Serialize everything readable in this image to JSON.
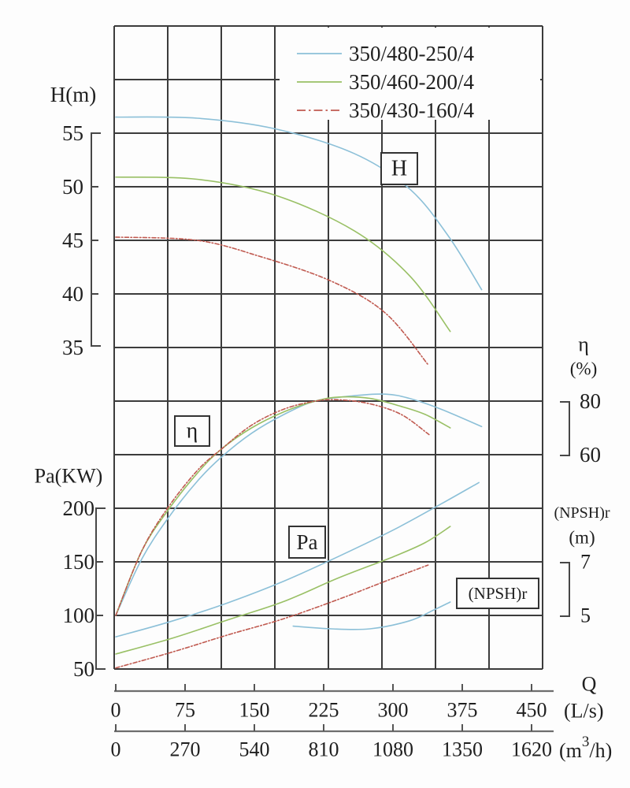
{
  "chart_data": {
    "type": "line",
    "title": "",
    "grid": true,
    "legend_position": "top-right-inside",
    "legend": [
      {
        "label": "350/480-250/4",
        "color": "#8cc0d8",
        "style": "solid"
      },
      {
        "label": "350/460-200/4",
        "color": "#99c065",
        "style": "solid"
      },
      {
        "label": "350/430-160/4",
        "color": "#c05a50",
        "style": "dashdot"
      }
    ],
    "axes": {
      "x_primary": {
        "name": "Q",
        "unit": "(L/s)",
        "ticks": [
          0,
          75,
          150,
          225,
          300,
          375,
          450
        ]
      },
      "x_secondary": {
        "unit_parts": {
          "pre": "(m",
          "sup": "3",
          "post": "/h)"
        },
        "ticks": [
          0,
          270,
          540,
          810,
          1080,
          1350,
          1620
        ]
      },
      "y_H": {
        "title": "H(m)",
        "ticks": [
          55,
          50,
          45,
          40,
          35
        ],
        "side": "left"
      },
      "y_Pa": {
        "title": "Pa(KW)",
        "ticks": [
          200,
          150,
          100,
          50
        ],
        "side": "left"
      },
      "y_eta": {
        "title": "η",
        "unit": "(%)",
        "ticks": [
          80,
          60
        ],
        "side": "right"
      },
      "y_npsh": {
        "title": "(NPSH)r",
        "unit": "(m)",
        "ticks": [
          7,
          5
        ],
        "side": "right"
      }
    },
    "curve_labels": {
      "H": "H",
      "eta": "η",
      "Pa": "Pa",
      "npsh": "(NPSH)r"
    },
    "series": {
      "H": [
        {
          "model": "350/480-250/4",
          "points": [
            [
              0,
              56.5
            ],
            [
              88,
              56.4
            ],
            [
              173,
              55.4
            ],
            [
              258,
              53.1
            ],
            [
              318,
              49.8
            ],
            [
              360,
              45.4
            ],
            [
              396,
              40.4
            ]
          ]
        },
        {
          "model": "350/460-200/4",
          "points": [
            [
              0,
              50.9
            ],
            [
              88,
              50.7
            ],
            [
              173,
              49.2
            ],
            [
              258,
              45.9
            ],
            [
              318,
              41.7
            ],
            [
              362,
              36.5
            ]
          ]
        },
        {
          "model": "350/430-160/4",
          "points": [
            [
              0,
              45.3
            ],
            [
              88,
              45.0
            ],
            [
              156,
              43.5
            ],
            [
              233,
              41.2
            ],
            [
              292,
              38.2
            ],
            [
              338,
              33.4
            ]
          ]
        }
      ],
      "eta": [
        {
          "model": "350/480-250/4",
          "points": [
            [
              0,
              0
            ],
            [
              28,
              21
            ],
            [
              56,
              36
            ],
            [
              88,
              50
            ],
            [
              114,
              59
            ],
            [
              147,
              68
            ],
            [
              182,
              75
            ],
            [
              216,
              80
            ],
            [
              258,
              82
            ],
            [
              292,
              82.6
            ],
            [
              318,
              81
            ],
            [
              352,
              77
            ],
            [
              396,
              70.5
            ]
          ]
        },
        {
          "model": "350/460-200/4",
          "points": [
            [
              0,
              0
            ],
            [
              28,
              24
            ],
            [
              56,
              39
            ],
            [
              88,
              53
            ],
            [
              114,
              62
            ],
            [
              147,
              70
            ],
            [
              182,
              76
            ],
            [
              216,
              80
            ],
            [
              241,
              81.5
            ],
            [
              275,
              81
            ],
            [
              309,
              78
            ],
            [
              335,
              75
            ],
            [
              362,
              70
            ]
          ]
        },
        {
          "model": "350/430-160/4",
          "points": [
            [
              0,
              0
            ],
            [
              28,
              24
            ],
            [
              56,
              40
            ],
            [
              88,
              54
            ],
            [
              114,
              62
            ],
            [
              147,
              71
            ],
            [
              182,
              77
            ],
            [
              216,
              80
            ],
            [
              241,
              80.5
            ],
            [
              275,
              79
            ],
            [
              309,
              75
            ],
            [
              339,
              67.5
            ]
          ]
        }
      ],
      "Pa": [
        {
          "model": "350/480-250/4",
          "points": [
            [
              0,
              80
            ],
            [
              62,
              95
            ],
            [
              122,
              112
            ],
            [
              182,
              132
            ],
            [
              241,
              155
            ],
            [
              301,
              180
            ],
            [
              352,
              204
            ],
            [
              393,
              224
            ]
          ]
        },
        {
          "model": "350/460-200/4",
          "points": [
            [
              0,
              64
            ],
            [
              62,
              79
            ],
            [
              122,
              96
            ],
            [
              182,
              113
            ],
            [
              241,
              135
            ],
            [
              301,
              155
            ],
            [
              335,
              168
            ],
            [
              362,
              183
            ]
          ]
        },
        {
          "model": "350/430-160/4",
          "points": [
            [
              0,
              51
            ],
            [
              62,
              66
            ],
            [
              122,
              82
            ],
            [
              182,
              97
            ],
            [
              241,
              115
            ],
            [
              292,
              132
            ],
            [
              338,
              147
            ]
          ]
        }
      ],
      "npsh": [
        {
          "model": "350/480-250/4",
          "points": [
            [
              192,
              4.6
            ],
            [
              233,
              4.5
            ],
            [
              275,
              4.5
            ],
            [
              318,
              4.8
            ],
            [
              344,
              5.2
            ],
            [
              362,
              5.5
            ]
          ]
        }
      ]
    },
    "style": {
      "grid_color": "#3c3c3c",
      "axis_color": "#6e6e6e",
      "bracket_color": "#474747",
      "text_color": "#1f1f1f"
    }
  }
}
